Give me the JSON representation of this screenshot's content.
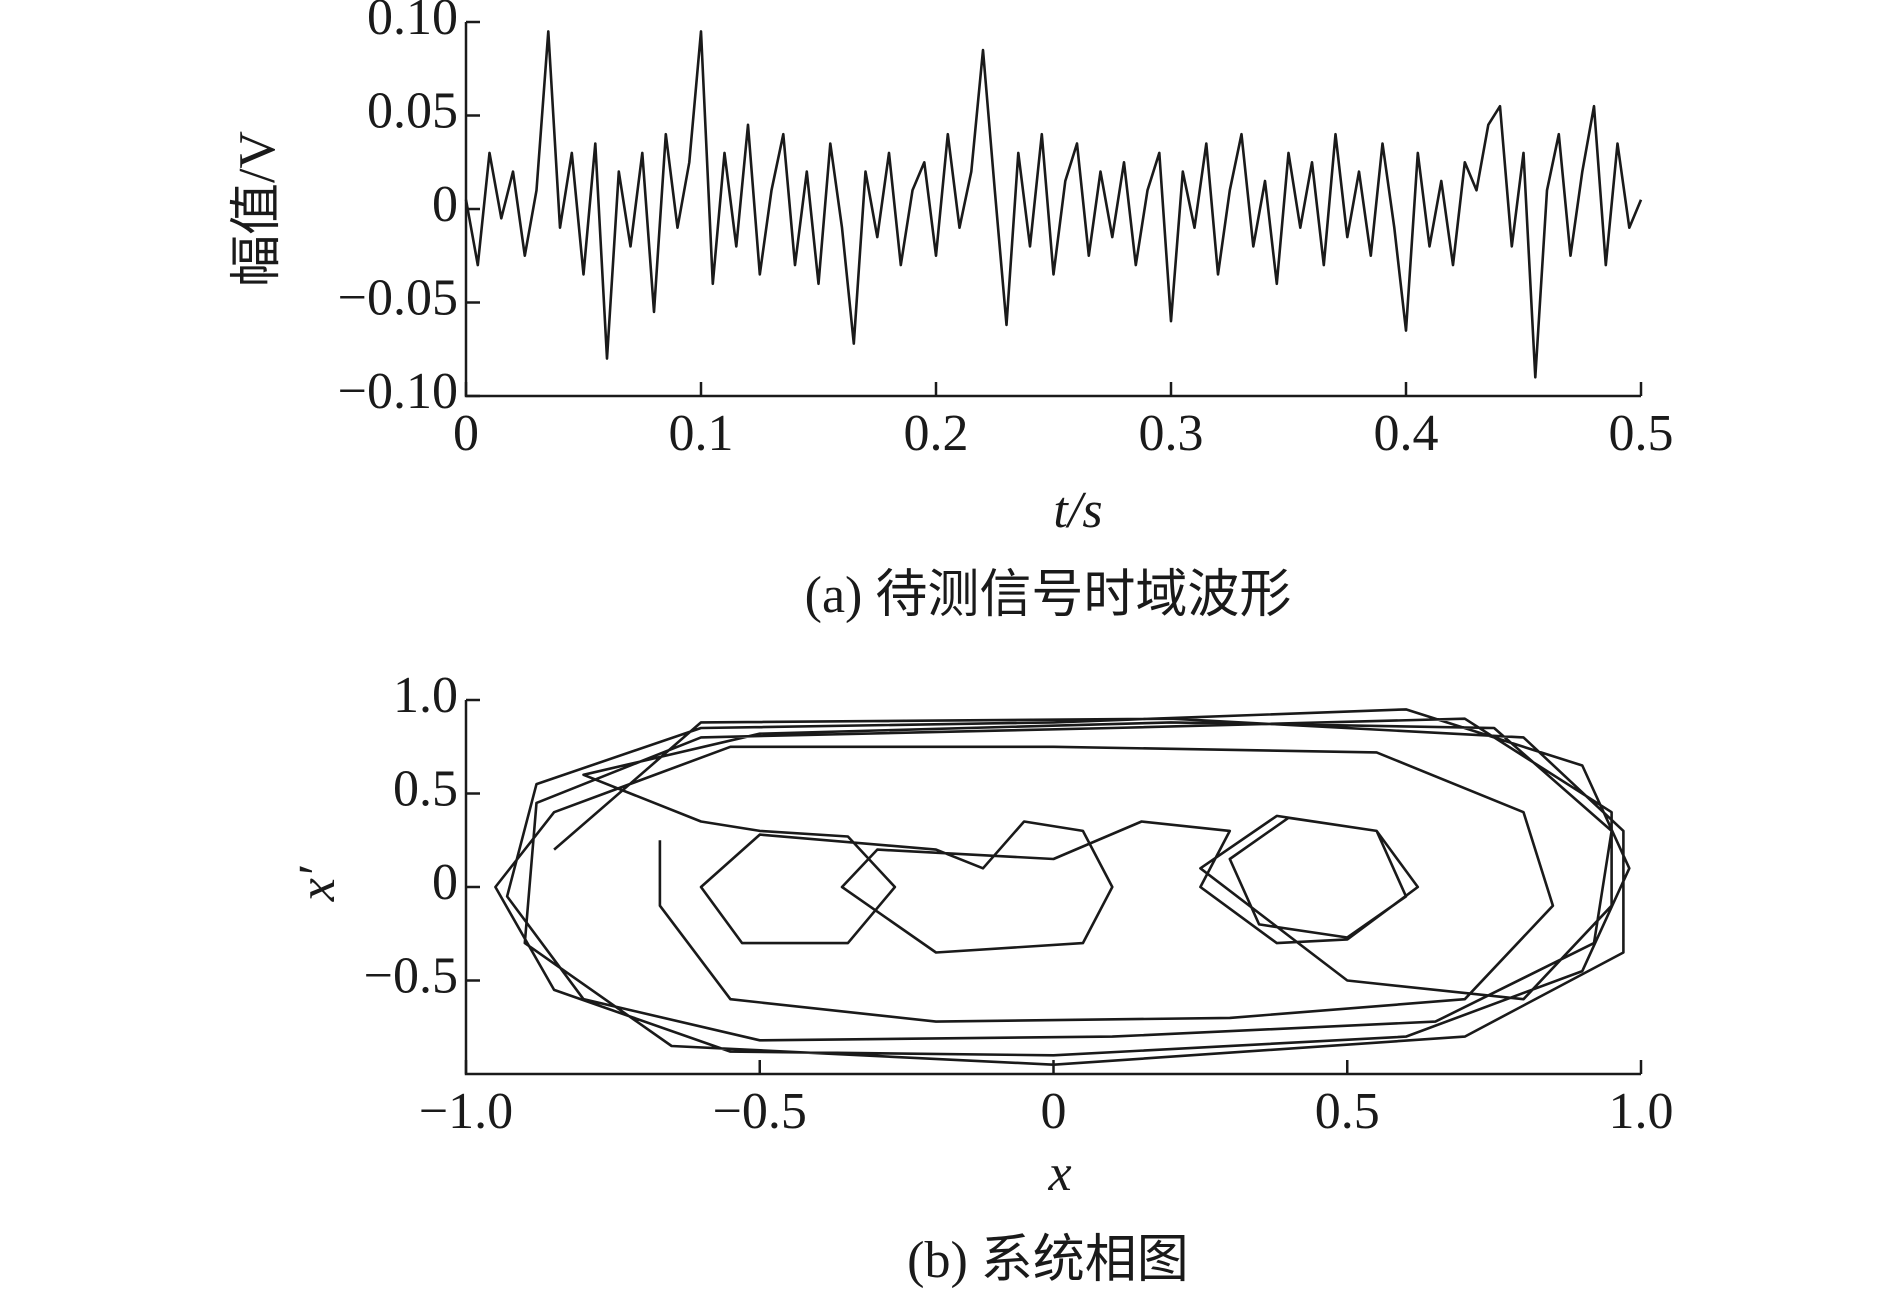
{
  "chart_data": [
    {
      "type": "line",
      "xlabel": "t/s",
      "ylabel": "幅值/V",
      "caption": "(a) 待测信号时域波形",
      "xlim": [
        0,
        0.5
      ],
      "xticks": [
        0,
        0.1,
        0.2,
        0.3,
        0.4,
        0.5
      ],
      "ylim": [
        -0.1,
        0.1
      ],
      "yticks": [
        {
          "value": -0.1,
          "label": "−0.10"
        },
        {
          "value": -0.05,
          "label": "−0.05"
        },
        0,
        0.05,
        {
          "value": 0.1,
          "label": "0.10"
        }
      ],
      "x": [
        0,
        0.005,
        0.01,
        0.015,
        0.02,
        0.025,
        0.03,
        0.035,
        0.04,
        0.045,
        0.05,
        0.055,
        0.06,
        0.065,
        0.07,
        0.075,
        0.08,
        0.085,
        0.09,
        0.095,
        0.1,
        0.105,
        0.11,
        0.115,
        0.12,
        0.125,
        0.13,
        0.135,
        0.14,
        0.145,
        0.15,
        0.155,
        0.16,
        0.165,
        0.17,
        0.175,
        0.18,
        0.185,
        0.19,
        0.195,
        0.2,
        0.205,
        0.21,
        0.215,
        0.22,
        0.225,
        0.23,
        0.235,
        0.24,
        0.245,
        0.25,
        0.255,
        0.26,
        0.265,
        0.27,
        0.275,
        0.28,
        0.285,
        0.29,
        0.295,
        0.3,
        0.305,
        0.31,
        0.315,
        0.32,
        0.325,
        0.33,
        0.335,
        0.34,
        0.345,
        0.35,
        0.355,
        0.36,
        0.365,
        0.37,
        0.375,
        0.38,
        0.385,
        0.39,
        0.395,
        0.4,
        0.405,
        0.41,
        0.415,
        0.42,
        0.425,
        0.43,
        0.435,
        0.44,
        0.445,
        0.45,
        0.455,
        0.46,
        0.465,
        0.47,
        0.475,
        0.48,
        0.485,
        0.49,
        0.495,
        0.5
      ],
      "series": [
        {
          "color": "#1a1a1a",
          "values": [
            0.005,
            -0.03,
            0.03,
            -0.005,
            0.02,
            -0.025,
            0.01,
            0.095,
            -0.01,
            0.03,
            -0.035,
            0.035,
            -0.08,
            0.02,
            -0.02,
            0.03,
            -0.055,
            0.04,
            -0.01,
            0.025,
            0.095,
            -0.04,
            0.03,
            -0.02,
            0.045,
            -0.035,
            0.01,
            0.04,
            -0.03,
            0.02,
            -0.04,
            0.035,
            -0.01,
            -0.072,
            0.02,
            -0.015,
            0.03,
            -0.03,
            0.01,
            0.025,
            -0.025,
            0.04,
            -0.01,
            0.02,
            0.085,
            0.01,
            -0.062,
            0.03,
            -0.02,
            0.04,
            -0.035,
            0.015,
            0.035,
            -0.025,
            0.02,
            -0.015,
            0.025,
            -0.03,
            0.01,
            0.03,
            -0.06,
            0.02,
            -0.01,
            0.035,
            -0.035,
            0.01,
            0.04,
            -0.02,
            0.015,
            -0.04,
            0.03,
            -0.01,
            0.025,
            -0.03,
            0.04,
            -0.015,
            0.02,
            -0.025,
            0.035,
            -0.01,
            -0.065,
            0.03,
            -0.02,
            0.015,
            -0.03,
            0.025,
            0.01,
            0.045,
            0.055,
            -0.02,
            0.03,
            -0.09,
            0.01,
            0.04,
            -0.025,
            0.02,
            0.055,
            -0.03,
            0.035,
            -0.01,
            0.005
          ]
        }
      ]
    },
    {
      "type": "line",
      "xlabel": "x",
      "ylabel": "x′",
      "caption": "(b) 系统相图",
      "xlim": [
        -1,
        1
      ],
      "xticks": [
        {
          "value": -1,
          "label": "−1.0"
        },
        {
          "value": -0.5,
          "label": "−0.5"
        },
        0,
        0.5,
        {
          "value": 1,
          "label": "1.0"
        }
      ],
      "ylim": [
        -1,
        1
      ],
      "yticks": [
        {
          "value": -0.5,
          "label": "−0.5"
        },
        0,
        0.5,
        {
          "value": 1,
          "label": "1.0"
        }
      ],
      "x": [
        -0.67,
        -0.67,
        -0.55,
        -0.2,
        0.3,
        0.7,
        0.85,
        0.8,
        0.55,
        0,
        -0.55,
        -0.85,
        -0.95,
        -0.85,
        -0.55,
        0,
        0.6,
        0.9,
        0.98,
        0.9,
        0.6,
        0,
        -0.6,
        -0.88,
        -0.93,
        -0.8,
        -0.5,
        0.1,
        0.65,
        0.92,
        0.95,
        0.75,
        0.2,
        -0.5,
        -0.8,
        -0.6,
        -0.5,
        -0.35,
        -0.27,
        -0.35,
        -0.53,
        -0.6,
        -0.5,
        -0.2,
        -0.12,
        -0.05,
        0.05,
        0.1,
        0.05,
        -0.2,
        -0.36,
        -0.3,
        0,
        0.15,
        0.3,
        0.25,
        0.38,
        0.5,
        0.62,
        0.55,
        0.4,
        0.3,
        0.35,
        0.5,
        0.6,
        0.55,
        0.38,
        0.25,
        0.5,
        0.8,
        0.95,
        0.95,
        0.7,
        0.1,
        -0.6,
        -0.88,
        -0.9,
        -0.65,
        0,
        0.7,
        0.97,
        0.97,
        0.8,
        0.2,
        -0.6,
        -0.85
      ],
      "series": [
        {
          "color": "#1a1a1a",
          "values": [
            0.25,
            -0.1,
            -0.6,
            -0.72,
            -0.7,
            -0.6,
            -0.1,
            0.4,
            0.72,
            0.75,
            0.75,
            0.4,
            0,
            -0.55,
            -0.88,
            -0.9,
            -0.8,
            -0.45,
            0.1,
            0.65,
            0.95,
            0.88,
            0.85,
            0.55,
            -0.05,
            -0.6,
            -0.82,
            -0.8,
            -0.72,
            -0.3,
            0.3,
            0.85,
            0.88,
            0.82,
            0.6,
            0.35,
            0.3,
            0.27,
            0,
            -0.3,
            -0.3,
            0,
            0.28,
            0.2,
            0.1,
            0.35,
            0.3,
            0,
            -0.3,
            -0.35,
            0,
            0.2,
            0.15,
            0.35,
            0.3,
            0,
            -0.3,
            -0.28,
            0,
            0.3,
            0.37,
            0.15,
            -0.2,
            -0.27,
            -0.05,
            0.3,
            0.38,
            0.1,
            -0.5,
            -0.6,
            -0.1,
            0.4,
            0.9,
            0.85,
            0.8,
            0.45,
            -0.3,
            -0.85,
            -0.95,
            -0.8,
            -0.35,
            0.3,
            0.8,
            0.9,
            0.88,
            0.2
          ]
        }
      ]
    }
  ]
}
